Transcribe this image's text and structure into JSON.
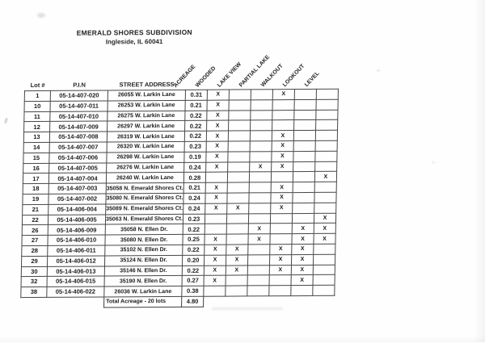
{
  "title": {
    "line1": "EMERALD SHORES SUBDIVISION",
    "line2": "Ingleside, IL 60041"
  },
  "colors": {
    "ink": "#1b1b1b",
    "border": "#474747",
    "paper": "#fefefe"
  },
  "table": {
    "headers": {
      "lot": "Lot #",
      "pin": "P.I.N",
      "address": "STREET ADDRESS"
    },
    "feature_headers": [
      "ACREAGE",
      "WOODED",
      "LAKE VIEW",
      "PARTIAL LAKE",
      "WALKOUT",
      "LOOKOUT",
      "LEVEL"
    ],
    "mark": "X",
    "rows": [
      [
        "1",
        "05-14-407-020",
        "26055 W. Larkin Lane",
        "0.31",
        "X",
        "",
        "",
        "X",
        "",
        ""
      ],
      [
        "10",
        "05-14-407-011",
        "26253 W. Larkin Lane",
        "0.21",
        "X",
        "",
        "",
        "",
        "",
        ""
      ],
      [
        "11",
        "05-14-407-010",
        "26275 W. Larkin Lane",
        "0.22",
        "X",
        "",
        "",
        "",
        "",
        ""
      ],
      [
        "12",
        "05-14-407-009",
        "26297 W. Larkin Lane",
        "0.22",
        "X",
        "",
        "",
        "",
        "",
        ""
      ],
      [
        "13",
        "05-14-407-008",
        "26319 W. Larkin Lane",
        "0.22",
        "X",
        "",
        "",
        "X",
        "",
        ""
      ],
      [
        "14",
        "05-14-407-007",
        "26320 W. Larkin Lane",
        "0.23",
        "X",
        "",
        "",
        "X",
        "",
        ""
      ],
      [
        "15",
        "05-14-407-006",
        "26298 W. Larkin Lane",
        "0.19",
        "X",
        "",
        "",
        "X",
        "",
        ""
      ],
      [
        "16",
        "05-14-407-005",
        "26276 W. Larkin Lane",
        "0.24",
        "X",
        "",
        "X",
        "X",
        "",
        ""
      ],
      [
        "17",
        "05-14-407-004",
        "26240 W. Larkin Lane",
        "0.28",
        "",
        "",
        "",
        "",
        "",
        "X"
      ],
      [
        "18",
        "05-14-407-003",
        "35058 N. Emerald Shores Ct.",
        "0.21",
        "X",
        "",
        "",
        "X",
        "",
        ""
      ],
      [
        "19",
        "05-14-407-002",
        "35080 N. Emerald Shores Ct.",
        "0.24",
        "X",
        "",
        "",
        "X",
        "",
        ""
      ],
      [
        "21",
        "05-14-406-004",
        "35089 N. Emerald Shores Ct.",
        "0.24",
        "X",
        "X",
        "",
        "X",
        "",
        ""
      ],
      [
        "22",
        "05-14-406-005",
        "35063 N. Emerald Shores Ct.",
        "0.23",
        "",
        "",
        "",
        "",
        "",
        "X"
      ],
      [
        "26",
        "05-14-406-009",
        "35058 N. Ellen Dr.",
        "0.22",
        "",
        "",
        "X",
        "",
        "X",
        "X"
      ],
      [
        "27",
        "05-14-406-010",
        "35080 N. Ellen Dr.",
        "0.25",
        "X",
        "",
        "X",
        "",
        "X",
        "X"
      ],
      [
        "28",
        "05-14-406-011",
        "35102 N. Ellen Dr.",
        "0.22",
        "X",
        "X",
        "",
        "X",
        "X",
        ""
      ],
      [
        "29",
        "05-14-406-012",
        "35124 N. Ellen Dr.",
        "0.20",
        "X",
        "X",
        "",
        "X",
        "X",
        ""
      ],
      [
        "30",
        "05-14-406-013",
        "35146 N. Ellen Dr.",
        "0.22",
        "X",
        "X",
        "",
        "X",
        "X",
        ""
      ],
      [
        "32",
        "05-14-406-015",
        "35190 N. Ellen Dr.",
        "0.27",
        "X",
        "",
        "",
        "",
        "X",
        ""
      ],
      [
        "38",
        "05-14-406-022",
        "26036 W. Larkin Lane",
        "0.38",
        "",
        "",
        "",
        "",
        "",
        ""
      ]
    ],
    "total": {
      "label": "Total Acreage - 20 lots",
      "value": "4.80"
    }
  }
}
